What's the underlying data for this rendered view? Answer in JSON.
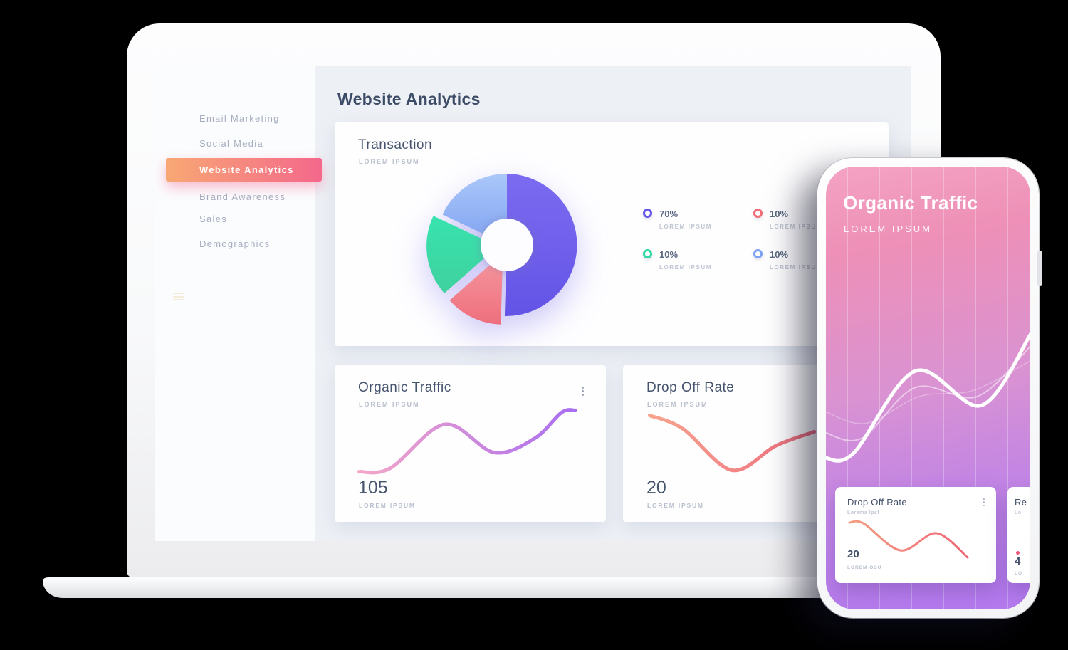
{
  "sidebar": {
    "items": [
      {
        "label": "Email Marketing",
        "active": false
      },
      {
        "label": "Social Media",
        "active": false
      },
      {
        "label": "Website Analytics",
        "active": true
      },
      {
        "label": "Brand Awareness",
        "active": false
      },
      {
        "label": "Sales",
        "active": false
      },
      {
        "label": "Demographics",
        "active": false
      }
    ]
  },
  "dashboard": {
    "title": "Website Analytics",
    "transaction": {
      "title": "Transaction",
      "subtitle": "LOREM IPSUM",
      "legend": [
        {
          "value": "70%",
          "label": "LOREM IPSUM",
          "color": "#6658e9"
        },
        {
          "value": "10%",
          "label": "LOREM IPSUM",
          "color": "#f06d77"
        },
        {
          "value": "10%",
          "label": "LOREM IPSUM",
          "color": "#30d9a6"
        },
        {
          "value": "10%",
          "label": "LOREM IPSUM",
          "color": "#7da2f5"
        }
      ]
    },
    "organic": {
      "title": "Organic Traffic",
      "subtitle": "LOREM IPSUM",
      "value": "105",
      "value_label": "LOREM IPSUM"
    },
    "dropoff": {
      "title": "Drop Off Rate",
      "subtitle": "LOREM IPSUM",
      "value": "20",
      "value_label": "LOREM IPSUM"
    }
  },
  "phone": {
    "title": "Organic Traffic",
    "subtitle": "LOREM IPSUM",
    "cards": [
      {
        "title": "Drop Off Rate",
        "subtitle": "Lorema Ipsf",
        "value": "20",
        "value_label": "LOREM OSU"
      },
      {
        "title": "Re",
        "subtitle": "Lo",
        "value": "4",
        "value_label": "LO"
      }
    ]
  },
  "colors": {
    "sidebar_active_gradient": [
      "#f8a874",
      "#f4688b"
    ],
    "title_text": "#3d4c66",
    "muted_text": "#b9c0cd",
    "nav_text": "#a5adbf",
    "screen_bg": "#edf0f5",
    "card_bg": "#fefeff",
    "phone_gradient": [
      "#f4a3c4",
      "#b47aee"
    ]
  },
  "chart_data": [
    {
      "id": "transaction-donut",
      "type": "pie",
      "title": "Transaction",
      "labels": [
        "LOREM IPSUM",
        "LOREM IPSUM",
        "LOREM IPSUM",
        "LOREM IPSUM"
      ],
      "value_labels": [
        "70%",
        "10%",
        "10%",
        "10%"
      ],
      "values": [
        70,
        10,
        10,
        10
      ],
      "legend_position": "right",
      "donut_hole_ratio": 0.37,
      "visual_fractions": [
        0.505,
        0.13,
        0.185,
        0.18
      ],
      "exploded": [
        false,
        true,
        true,
        false
      ],
      "explode_distance": 13,
      "colors": [
        [
          "#7b6bf1",
          "#6454e6"
        ],
        [
          "#f6999f",
          "#ee6f7e"
        ],
        [
          "#38e3ae",
          "#3fd19e"
        ],
        [
          "#abc7f9",
          "#7ea2f1"
        ]
      ]
    },
    {
      "id": "organic-line",
      "type": "line",
      "title": "Organic Traffic",
      "current_value": 105,
      "grid": false,
      "points": [
        [
          2,
          90
        ],
        [
          16,
          85
        ],
        [
          40,
          26
        ],
        [
          62,
          64
        ],
        [
          80,
          45
        ],
        [
          92,
          10
        ],
        [
          98,
          7
        ]
      ],
      "stroke_gradient": [
        "#f7a8c6",
        "#a76df2"
      ],
      "stroke_width": 5
    },
    {
      "id": "dropoff-line",
      "type": "line",
      "title": "Drop Off Rate",
      "current_value": 20,
      "grid": false,
      "points": [
        [
          3,
          14
        ],
        [
          22,
          32
        ],
        [
          50,
          88
        ],
        [
          75,
          55
        ],
        [
          97,
          36
        ]
      ],
      "stroke_gradient": [
        "#f7a68e",
        "#ee6a7e"
      ],
      "stroke_width": 5
    },
    {
      "id": "phone-wave",
      "type": "line",
      "title": "Organic Traffic",
      "grid": "vertical-lines",
      "points": [
        [
          0,
          89
        ],
        [
          14,
          86
        ],
        [
          44,
          31
        ],
        [
          76,
          54
        ],
        [
          100,
          6
        ]
      ],
      "stroke_gradient": [
        "#ffffff",
        "#ffffff"
      ],
      "stroke_width": 5,
      "secondary": [
        {
          "points": [
            [
              0,
              72
            ],
            [
              18,
              76
            ],
            [
              44,
              42
            ],
            [
              74,
              48
            ],
            [
              100,
              14
            ]
          ],
          "width": 2,
          "opacity": 0.5
        },
        {
          "points": [
            [
              0,
              58
            ],
            [
              20,
              66
            ],
            [
              46,
              48
            ],
            [
              72,
              44
            ],
            [
              100,
              24
            ]
          ],
          "width": 1.3,
          "opacity": 0.32
        }
      ]
    },
    {
      "id": "phone-mini-line",
      "type": "line",
      "title": "Drop Off Rate",
      "current_value": 20,
      "grid": false,
      "points": [
        [
          4,
          13
        ],
        [
          14,
          15
        ],
        [
          40,
          76
        ],
        [
          65,
          37
        ],
        [
          87,
          92
        ]
      ],
      "stroke_gradient": [
        "#f5a081",
        "#f05c76"
      ],
      "stroke_width": 3
    }
  ]
}
